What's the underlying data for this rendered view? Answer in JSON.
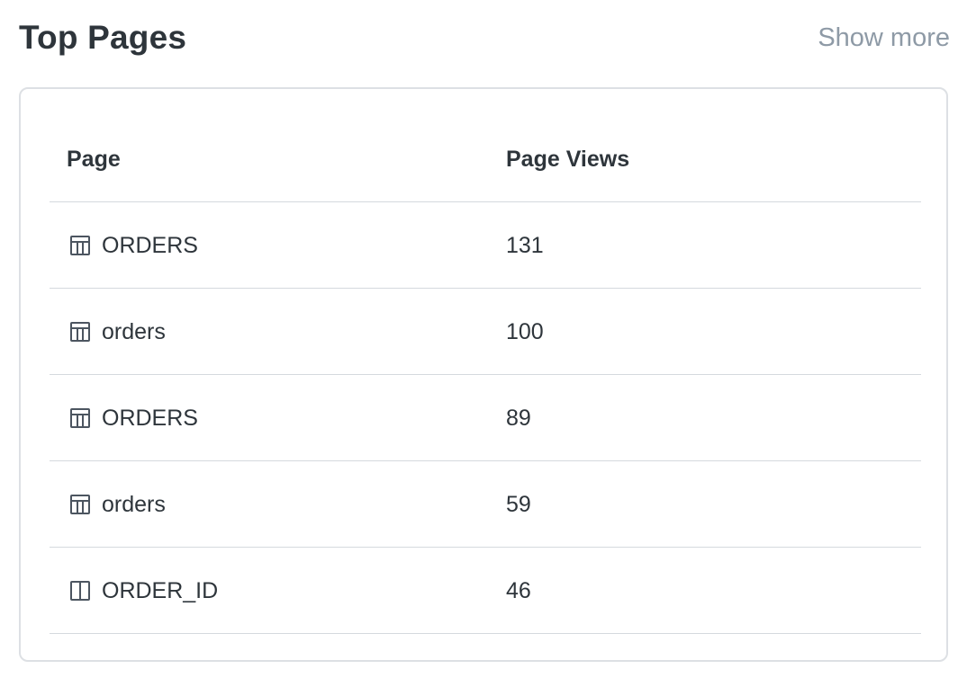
{
  "header": {
    "title": "Top Pages",
    "show_more_label": "Show more"
  },
  "table": {
    "columns": [
      "Page",
      "Page Views"
    ],
    "rows": [
      {
        "icon": "table-icon",
        "page": "ORDERS",
        "views": "131"
      },
      {
        "icon": "table-icon",
        "page": "orders",
        "views": "100"
      },
      {
        "icon": "table-icon",
        "page": "ORDERS",
        "views": "89"
      },
      {
        "icon": "table-icon",
        "page": "orders",
        "views": "59"
      },
      {
        "icon": "column-icon",
        "page": "ORDER_ID",
        "views": "46"
      }
    ]
  },
  "colors": {
    "text": "#2e353b",
    "muted": "#8e9aa6",
    "border": "#dde0e4"
  }
}
